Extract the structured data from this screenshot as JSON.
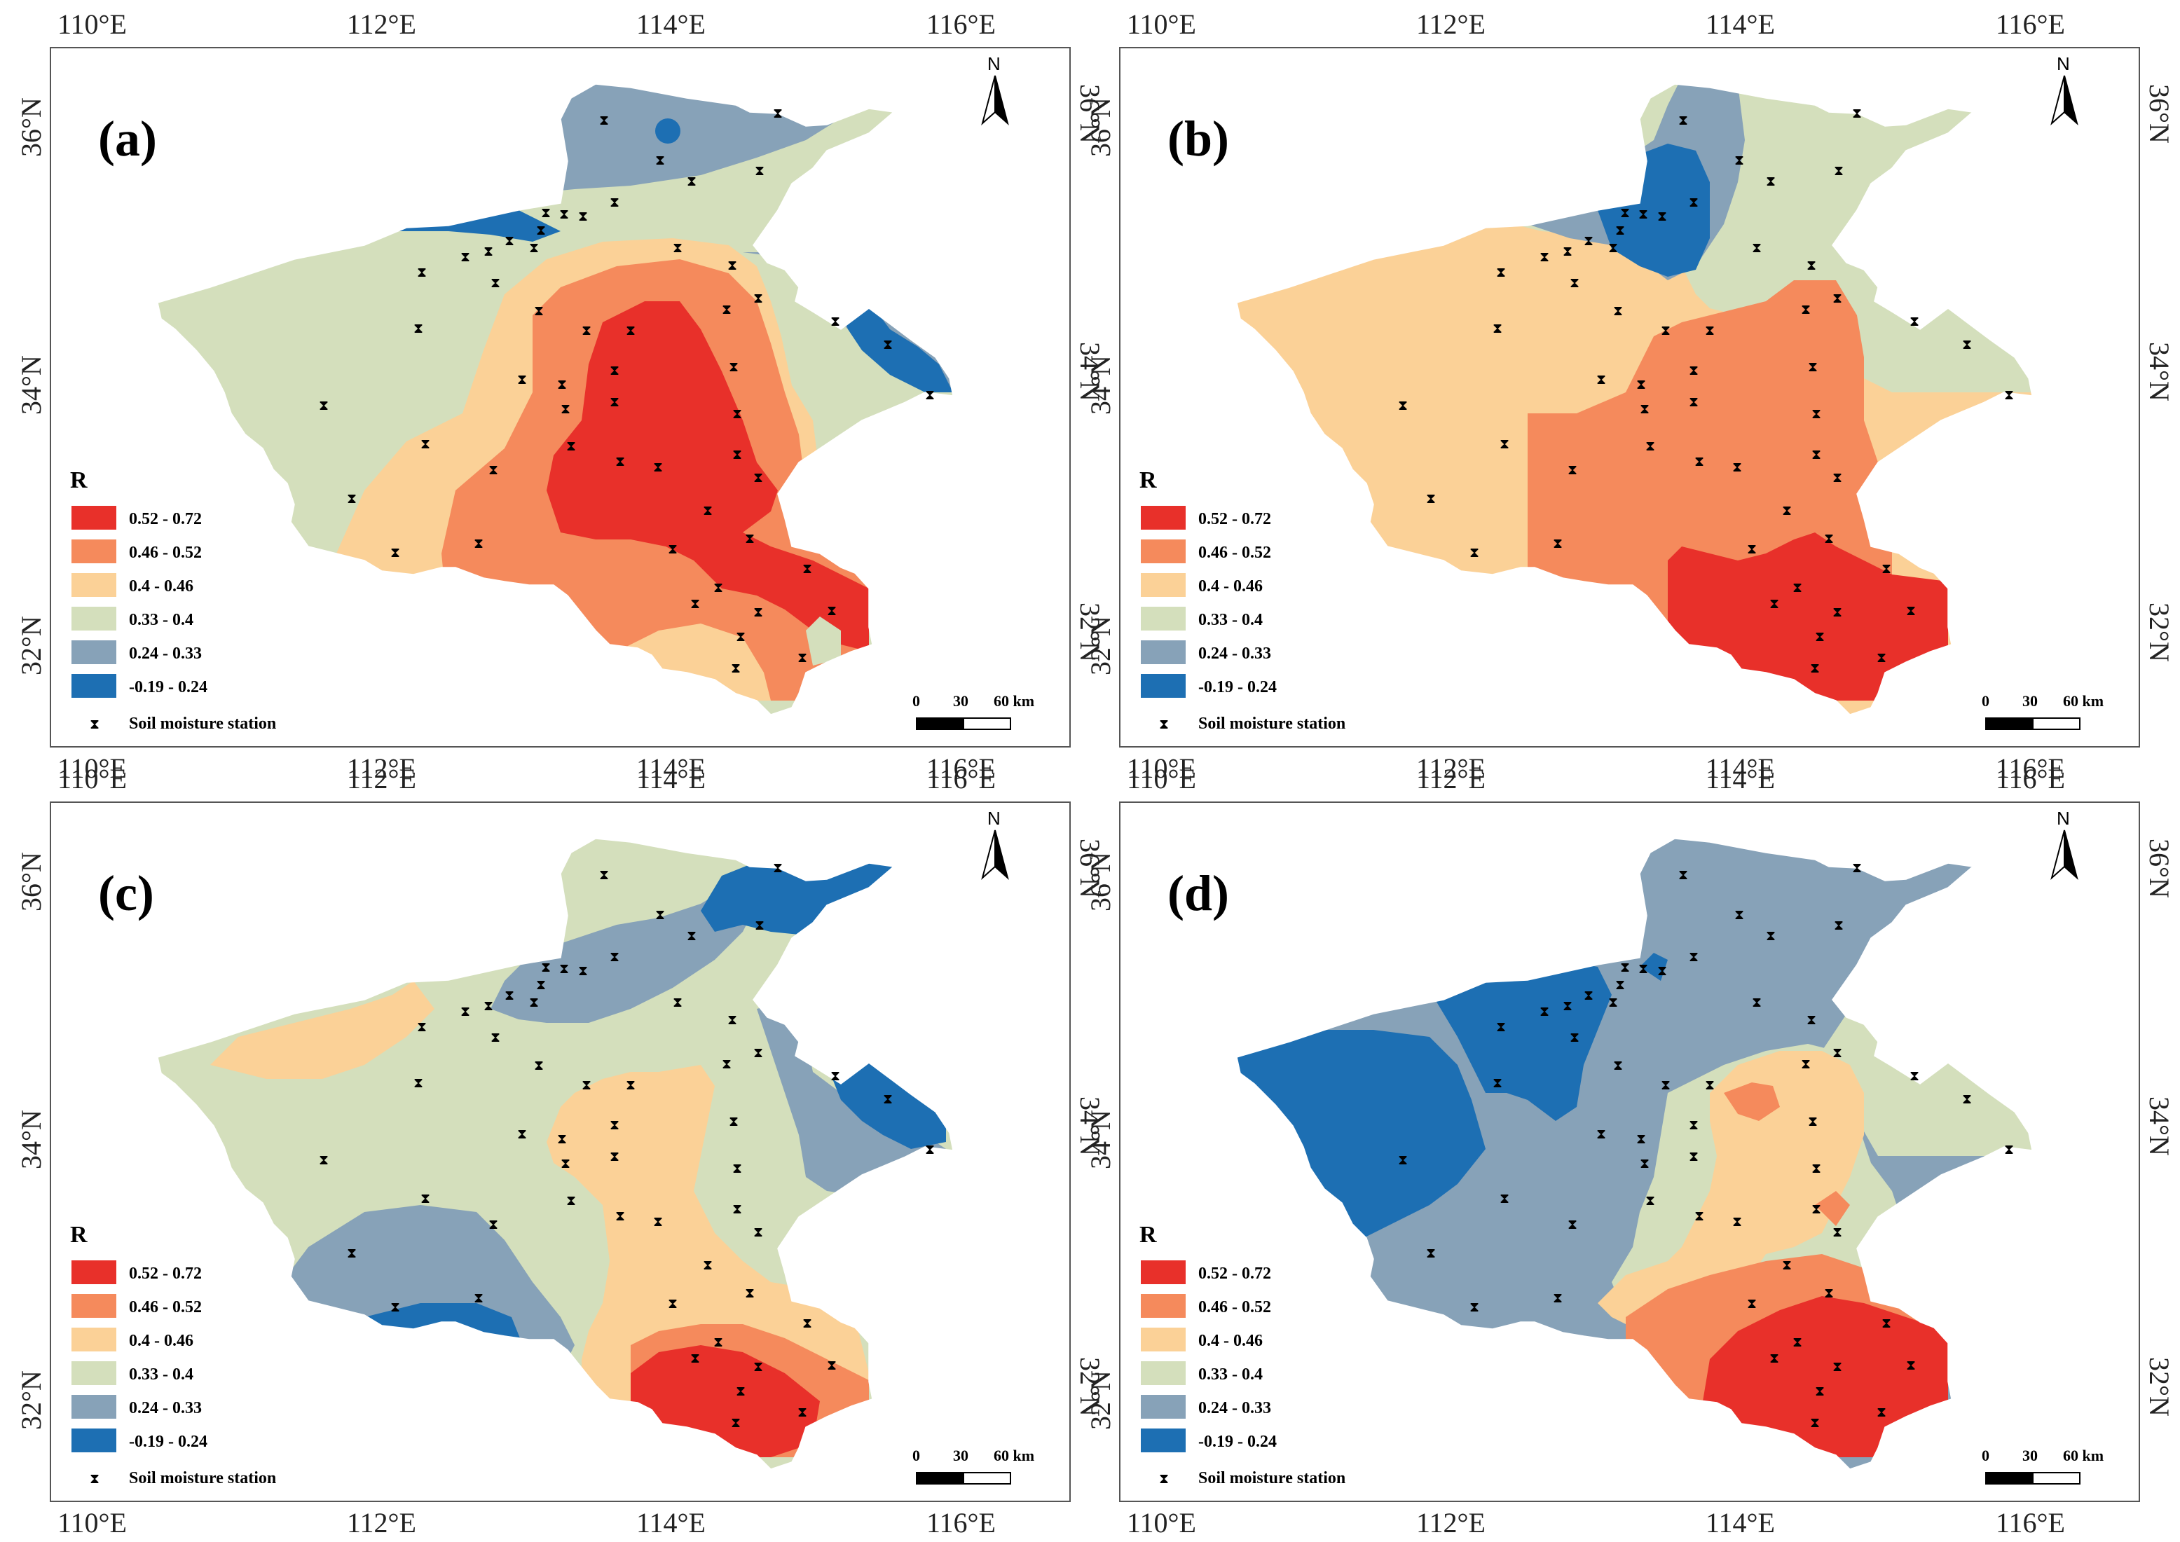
{
  "figure": {
    "colors": {
      "c1": "#e8302a",
      "c2": "#f58a5c",
      "c3": "#fbd197",
      "c4": "#d4dfbc",
      "c5": "#87a2b8",
      "c6": "#1d6fb3",
      "frame": "#555555"
    },
    "legend": {
      "title": "R",
      "classes": [
        {
          "label": "0.52 - 0.72",
          "color": "#e8302a"
        },
        {
          "label": "0.46 - 0.52",
          "color": "#f58a5c"
        },
        {
          "label": "0.4 - 0.46",
          "color": "#fbd197"
        },
        {
          "label": "0.33 - 0.4",
          "color": "#d4dfbc"
        },
        {
          "label": "0.24 - 0.33",
          "color": "#87a2b8"
        },
        {
          "label": "-0.19 - 0.24",
          "color": "#1d6fb3"
        }
      ],
      "station_label": "Soil moisture station",
      "station_icon": "hourglass-marker-icon"
    },
    "scale_bar": {
      "labels": [
        "0",
        "30",
        "60 km"
      ]
    },
    "north_label": "N",
    "x_ticks": [
      "110°E",
      "112°E",
      "114°E",
      "116°E"
    ],
    "y_ticks": [
      "36°N",
      "34°N",
      "32°N"
    ],
    "panels": [
      {
        "id": "a",
        "label": "(a)"
      },
      {
        "id": "b",
        "label": "(b)"
      },
      {
        "id": "c",
        "label": "(c)"
      },
      {
        "id": "d",
        "label": "(d)"
      }
    ]
  }
}
